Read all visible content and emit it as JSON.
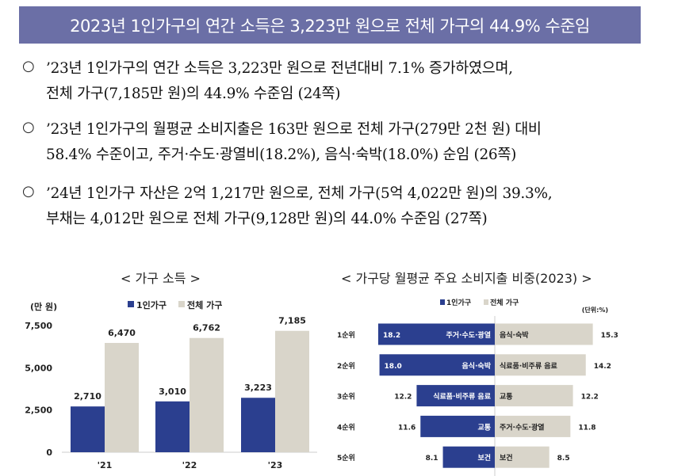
{
  "title": "2023년 1인가구의 연간 소득은 3,223만 원으로 전체 가구의 44.9% 수준임",
  "bullet_symbol": "○",
  "bullets": [
    {
      "lines": [
        "’23년 1인가구의 연간 소득은 3,223만 원으로 전년대비 7.1% 증가하였으며,",
        "전체 가구(7,185만 원)의 44.9% 수준임 (24쪽)"
      ]
    },
    {
      "lines": [
        "’23년 1인가구의 월평균 소비지출은 163만 원으로 전체 가구(279만 2천 원) 대비",
        "58.4% 수준이고, 주거·수도·광열비(18.2%), 음식·숙박(18.0%) 순임 (26쪽)"
      ]
    },
    {
      "lines": [
        "’24년 1인가구 자산은 2억 1,217만 원으로, 전체 가구(5억 4,022만 원)의 39.3%,",
        "부채는 4,012만 원으로 전체 가구(9,128만 원)의 44.0% 수준임 (27쪽)"
      ]
    }
  ],
  "colors": {
    "single": "#2b3f8f",
    "total": "#d9d5ca",
    "banner": "#6b6fa6"
  },
  "chart_data": [
    {
      "type": "bar",
      "title": "< 가구 소득 >",
      "ylabel": "(만 원)",
      "categories": [
        "'21",
        "'22",
        "'23"
      ],
      "series": [
        {
          "name": "1인가구",
          "values": [
            2710,
            3010,
            3223
          ]
        },
        {
          "name": "전체 가구",
          "values": [
            6470,
            6762,
            7185
          ]
        }
      ],
      "value_labels": [
        [
          "2,710",
          "3,010",
          "3,223"
        ],
        [
          "6,470",
          "6,762",
          "7,185"
        ]
      ],
      "yticks": [
        0,
        2500,
        5000,
        7500
      ],
      "ytick_labels": [
        "0",
        "2,500",
        "5,000",
        "7,500"
      ],
      "ylim": [
        0,
        7500
      ],
      "legend": "top"
    },
    {
      "type": "bar",
      "orientation": "horizontal-diverging",
      "title": "< 가구당 월평균 주요 소비지출 비중(2023) >",
      "unit": "(단위:%)",
      "categories": [
        "1순위",
        "2순위",
        "3순위",
        "4순위",
        "5순위"
      ],
      "series": [
        {
          "name": "1인가구",
          "values": [
            18.2,
            18.0,
            12.2,
            11.6,
            8.1
          ],
          "labels": [
            "18.2",
            "18.0",
            "12.2",
            "11.6",
            "8.1"
          ],
          "items": [
            "주거·수도·광열",
            "음식·숙박",
            "식료품·비주류 음료",
            "교통",
            "보건"
          ]
        },
        {
          "name": "전체 가구",
          "values": [
            15.3,
            14.2,
            12.2,
            11.8,
            8.5
          ],
          "labels": [
            "15.3",
            "14.2",
            "12.2",
            "11.8",
            "8.5"
          ],
          "items": [
            "음식·숙박",
            "식료품·비주류 음료",
            "교통",
            "주거·수도·광열",
            "보건"
          ]
        }
      ],
      "legend": "top"
    }
  ]
}
